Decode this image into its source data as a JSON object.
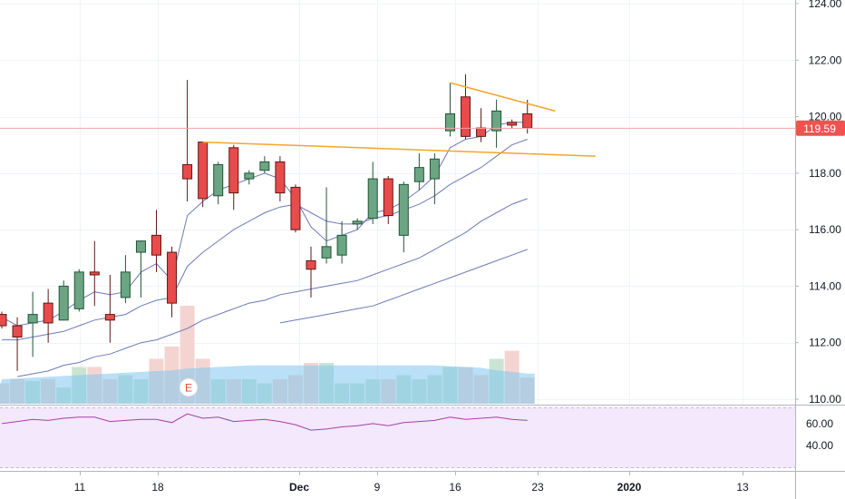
{
  "colors": {
    "up_body": "#6ba583",
    "up_border": "#225437",
    "down_body": "#e84b4b",
    "down_border": "#5b1a13",
    "ma_line": "#5d6bb3",
    "trendline": "#f7a42a",
    "price_line": "#f2a3a3",
    "price_tag_bg": "#ef5350",
    "volume_blue": "#7fc6ef",
    "volume_up": "#c9e4d3",
    "volume_down": "#f4d4d1",
    "rsi_line": "#a93ea8",
    "rsi_bg": "#f3e8fc",
    "earnings_marker": "#e0463c"
  },
  "price_tag": "119.59",
  "earnings_label": "E",
  "chart_data": [
    {
      "type": "candlestick",
      "title": "",
      "y_ticks": [
        "124.00",
        "122.00",
        "120.00",
        "118.00",
        "116.00",
        "114.00",
        "112.00",
        "110.00"
      ],
      "ylim": [
        110,
        124
      ],
      "x_ticks": [
        "11",
        "18",
        "Dec",
        "9",
        "16",
        "23",
        "2020",
        "13"
      ],
      "last_price": 119.59,
      "candles": [
        {
          "date": "Nov 5",
          "open": 113.0,
          "high": 113.1,
          "low": 112.5,
          "close": 112.6
        },
        {
          "date": "Nov 6",
          "open": 112.6,
          "high": 112.9,
          "low": 111.0,
          "close": 112.2
        },
        {
          "date": "Nov 7",
          "open": 112.7,
          "high": 113.8,
          "low": 111.5,
          "close": 113.0
        },
        {
          "date": "Nov 8",
          "open": 113.4,
          "high": 113.9,
          "low": 112.0,
          "close": 112.7
        },
        {
          "date": "Nov 11",
          "open": 112.8,
          "high": 114.2,
          "low": 112.8,
          "close": 114.0
        },
        {
          "date": "Nov 12",
          "open": 113.2,
          "high": 114.6,
          "low": 113.1,
          "close": 114.5
        },
        {
          "date": "Nov 13",
          "open": 114.5,
          "high": 115.6,
          "low": 113.3,
          "close": 114.4
        },
        {
          "date": "Nov 14",
          "open": 113.0,
          "high": 114.4,
          "low": 112.0,
          "close": 112.8
        },
        {
          "date": "Nov 15",
          "open": 113.6,
          "high": 115.1,
          "low": 113.4,
          "close": 114.5
        },
        {
          "date": "Nov 18",
          "open": 115.2,
          "high": 115.6,
          "low": 113.6,
          "close": 115.6
        },
        {
          "date": "Nov 19",
          "open": 115.8,
          "high": 116.7,
          "low": 114.5,
          "close": 115.1
        },
        {
          "date": "Nov 20",
          "open": 115.2,
          "high": 115.4,
          "low": 112.9,
          "close": 113.4
        },
        {
          "date": "Nov 21",
          "open": 118.3,
          "high": 121.3,
          "low": 117.0,
          "close": 117.8
        },
        {
          "date": "Nov 22",
          "open": 119.1,
          "high": 119.1,
          "low": 116.8,
          "close": 117.1
        },
        {
          "date": "Nov 25",
          "open": 117.2,
          "high": 118.4,
          "low": 116.9,
          "close": 118.3
        },
        {
          "date": "Nov 26",
          "open": 118.9,
          "high": 119.0,
          "low": 116.7,
          "close": 117.3
        },
        {
          "date": "Nov 27",
          "open": 117.8,
          "high": 118.1,
          "low": 117.6,
          "close": 118.0
        },
        {
          "date": "Nov 29",
          "open": 118.1,
          "high": 118.6,
          "low": 118.0,
          "close": 118.4
        },
        {
          "date": "Dec 2",
          "open": 118.4,
          "high": 118.6,
          "low": 117.0,
          "close": 117.3
        },
        {
          "date": "Dec 3",
          "open": 117.5,
          "high": 117.6,
          "low": 115.9,
          "close": 116.0
        },
        {
          "date": "Dec 4",
          "open": 114.9,
          "high": 115.4,
          "low": 113.6,
          "close": 114.6
        },
        {
          "date": "Dec 5",
          "open": 115.0,
          "high": 117.5,
          "low": 114.8,
          "close": 115.4
        },
        {
          "date": "Dec 6",
          "open": 115.1,
          "high": 116.3,
          "low": 114.8,
          "close": 115.8
        },
        {
          "date": "Dec 9",
          "open": 116.2,
          "high": 116.4,
          "low": 116.0,
          "close": 116.3
        },
        {
          "date": "Dec 10",
          "open": 116.4,
          "high": 118.4,
          "low": 116.2,
          "close": 117.8
        },
        {
          "date": "Dec 11",
          "open": 117.8,
          "high": 117.9,
          "low": 116.2,
          "close": 116.5
        },
        {
          "date": "Dec 12",
          "open": 115.8,
          "high": 117.7,
          "low": 115.2,
          "close": 117.6
        },
        {
          "date": "Dec 13",
          "open": 117.7,
          "high": 118.7,
          "low": 117.4,
          "close": 118.2
        },
        {
          "date": "Dec 16",
          "open": 117.8,
          "high": 118.7,
          "low": 116.9,
          "close": 118.5
        },
        {
          "date": "Dec 17",
          "open": 119.5,
          "high": 121.2,
          "low": 119.3,
          "close": 120.1
        },
        {
          "date": "Dec 18",
          "open": 120.7,
          "high": 121.5,
          "low": 119.2,
          "close": 119.3
        },
        {
          "date": "Dec 19",
          "open": 119.6,
          "high": 120.3,
          "low": 119.1,
          "close": 119.3
        },
        {
          "date": "Dec 20",
          "open": 119.5,
          "high": 120.6,
          "low": 118.9,
          "close": 120.2
        },
        {
          "date": "Dec 23",
          "open": 119.8,
          "high": 119.9,
          "low": 119.6,
          "close": 119.7
        },
        {
          "date": "Dec 24",
          "open": 120.1,
          "high": 120.6,
          "low": 119.4,
          "close": 119.6
        }
      ],
      "moving_averages": [
        {
          "period": "short",
          "values": [
            112.9,
            112.6,
            112.7,
            112.8,
            113.1,
            113.5,
            113.8,
            113.7,
            113.8,
            114.5,
            114.8,
            114.2,
            116.5,
            117.0,
            117.4,
            117.6,
            117.8,
            118.0,
            117.8,
            117.1,
            116.1,
            115.6,
            115.8,
            116.0,
            116.6,
            116.7,
            117.0,
            117.4,
            117.9,
            118.9,
            119.2,
            119.3,
            119.7,
            119.8,
            119.8
          ]
        },
        {
          "period": "medium",
          "values": [
            112.1,
            112.1,
            112.2,
            112.3,
            112.4,
            112.6,
            112.8,
            112.9,
            113.0,
            113.3,
            113.5,
            113.6,
            114.7,
            115.2,
            115.6,
            116.0,
            116.3,
            116.6,
            116.8,
            116.9,
            116.6,
            116.3,
            116.2,
            116.2,
            116.4,
            116.5,
            116.7,
            116.9,
            117.2,
            117.6,
            117.9,
            118.2,
            118.6,
            119.0,
            119.2
          ]
        },
        {
          "period": "long",
          "values": [
            null,
            110.8,
            110.9,
            111.0,
            111.2,
            111.3,
            111.5,
            111.6,
            111.8,
            112.0,
            112.1,
            112.3,
            112.5,
            112.8,
            113.0,
            113.2,
            113.4,
            113.5,
            113.7,
            113.8,
            113.9,
            114.0,
            114.1,
            114.2,
            114.4,
            114.6,
            114.8,
            115.0,
            115.3,
            115.6,
            115.9,
            116.3,
            116.6,
            116.9,
            117.1
          ]
        },
        {
          "period": "longest",
          "values": [
            null,
            null,
            null,
            null,
            null,
            null,
            null,
            null,
            null,
            null,
            null,
            null,
            null,
            null,
            null,
            null,
            null,
            null,
            112.7,
            112.8,
            112.9,
            113.0,
            113.1,
            113.2,
            113.3,
            113.5,
            113.7,
            113.9,
            114.1,
            114.3,
            114.5,
            114.7,
            114.9,
            115.1,
            115.3
          ]
        }
      ],
      "trendlines": [
        {
          "from": {
            "date": "Nov 22",
            "value": 119.1
          },
          "to": {
            "date": "Jan 2",
            "value": 118.6
          }
        },
        {
          "from": {
            "date": "Dec 17",
            "value": 121.2
          },
          "to": {
            "date": "Dec 26",
            "value": 120.2
          }
        }
      ],
      "volume": [
        0.25,
        0.3,
        0.28,
        0.3,
        0.2,
        0.45,
        0.45,
        0.3,
        0.35,
        0.3,
        0.55,
        0.7,
        1.2,
        0.55,
        0.3,
        0.3,
        0.3,
        0.25,
        0.3,
        0.35,
        0.5,
        0.5,
        0.25,
        0.25,
        0.3,
        0.3,
        0.35,
        0.3,
        0.35,
        0.45,
        0.45,
        0.35,
        0.55,
        0.65,
        0.32
      ],
      "volume_ma": [
        0.3,
        0.31,
        0.32,
        0.33,
        0.34,
        0.35,
        0.36,
        0.37,
        0.38,
        0.39,
        0.4,
        0.41,
        0.43,
        0.44,
        0.45,
        0.46,
        0.47,
        0.47,
        0.47,
        0.47,
        0.47,
        0.47,
        0.47,
        0.47,
        0.47,
        0.47,
        0.47,
        0.47,
        0.47,
        0.46,
        0.45,
        0.44,
        0.41,
        0.39,
        0.37
      ]
    },
    {
      "type": "line",
      "title": "",
      "y_ticks": [
        "60.00",
        "40.00"
      ],
      "ylim": [
        19,
        75
      ],
      "series": [
        {
          "values": [
            60,
            62,
            64,
            63,
            65,
            66,
            66,
            62,
            63,
            64,
            64,
            61,
            69,
            65,
            66,
            62,
            63,
            64,
            62,
            59,
            54,
            55,
            57,
            58,
            60,
            58,
            61,
            62,
            63,
            66,
            64,
            65,
            66,
            64,
            63
          ]
        }
      ]
    }
  ]
}
